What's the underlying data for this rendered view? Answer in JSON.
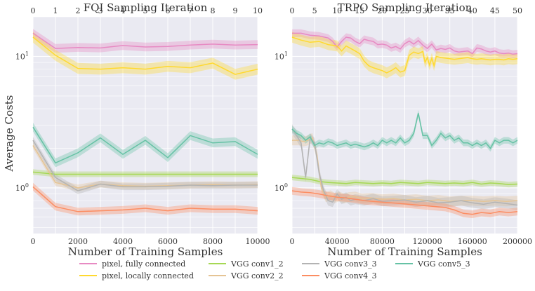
{
  "chart_data": [
    {
      "type": "line",
      "title": "FQI Sampling Iteration",
      "xlabel": "Number of Training Samples",
      "ylabel": "Average Costs",
      "yscale": "log",
      "xlim": [
        0,
        10000
      ],
      "ylim": [
        0.45,
        20
      ],
      "xticks": [
        0,
        2000,
        4000,
        6000,
        8000,
        10000
      ],
      "xtick_labels": [
        "0",
        "2000",
        "4000",
        "6000",
        "8000",
        "10000"
      ],
      "top_xlim": [
        0,
        10
      ],
      "top_xticks": [
        0,
        1,
        2,
        3,
        4,
        5,
        6,
        7,
        8,
        9,
        10
      ],
      "top_xtick_labels": [
        "0",
        "1",
        "2",
        "3",
        "4",
        "5",
        "6",
        "7",
        "8",
        "9",
        "10"
      ],
      "yticks": [
        1,
        10
      ],
      "ytick_labels": [
        "10^0",
        "10^1"
      ],
      "x": [
        0,
        1000,
        2000,
        3000,
        4000,
        5000,
        6000,
        7000,
        8000,
        9000,
        10000
      ],
      "series": [
        {
          "name": "pixel, fully connected",
          "color": "#e78ac3",
          "values": [
            15.0,
            11.5,
            11.7,
            11.6,
            12.1,
            11.8,
            11.9,
            12.2,
            12.4,
            12.2,
            12.3
          ],
          "band": 0.08
        },
        {
          "name": "pixel, locally connected",
          "color": "#ffd92f",
          "values": [
            14.0,
            10.2,
            8.1,
            8.0,
            8.2,
            8.0,
            8.4,
            8.2,
            8.9,
            7.3,
            8.0
          ],
          "band": 0.1
        },
        {
          "name": "VGG conv1_2",
          "color": "#a6d854",
          "values": [
            1.32,
            1.27,
            1.27,
            1.27,
            1.27,
            1.27,
            1.27,
            1.27,
            1.27,
            1.27,
            1.27
          ],
          "band": 0.05
        },
        {
          "name": "VGG conv2_2",
          "color": "#e5c494",
          "values": [
            2.1,
            1.1,
            1.0,
            1.07,
            1.04,
            1.03,
            1.04,
            1.05,
            1.06,
            1.05,
            1.06
          ],
          "band": 0.06
        },
        {
          "name": "VGG conv3_3",
          "color": "#b3b3b3",
          "values": [
            2.3,
            1.2,
            0.95,
            1.07,
            1.02,
            1.02,
            1.03,
            1.05,
            1.04,
            1.05,
            1.05
          ],
          "band": 0.06
        },
        {
          "name": "VGG conv4_3",
          "color": "#fc8d62",
          "values": [
            1.02,
            0.72,
            0.66,
            0.67,
            0.68,
            0.7,
            0.67,
            0.7,
            0.69,
            0.69,
            0.67
          ],
          "band": 0.07
        },
        {
          "name": "VGG conv5_3",
          "color": "#66c2a5",
          "values": [
            2.9,
            1.55,
            1.85,
            2.4,
            1.8,
            2.3,
            1.7,
            2.5,
            2.2,
            2.25,
            1.8
          ],
          "band": 0.08
        }
      ]
    },
    {
      "type": "line",
      "title": "TRPO Sampling Iteration",
      "xlabel": "Number of Training Samples",
      "ylabel": "",
      "yscale": "log",
      "xlim": [
        0,
        200000
      ],
      "ylim": [
        0.45,
        20
      ],
      "xticks": [
        0,
        40000,
        80000,
        120000,
        160000,
        200000
      ],
      "xtick_labels": [
        "0",
        "40000",
        "80000",
        "120000",
        "160000",
        "200000"
      ],
      "top_xlim": [
        0,
        50
      ],
      "top_xticks": [
        0,
        5,
        10,
        15,
        20,
        25,
        30,
        35,
        40,
        45,
        50
      ],
      "top_xtick_labels": [
        "0",
        "5",
        "10",
        "15",
        "20",
        "25",
        "30",
        "35",
        "40",
        "45",
        "50"
      ],
      "yticks": [
        1,
        10
      ],
      "ytick_labels": [
        "10^0",
        "10^1"
      ],
      "series": [
        {
          "name": "pixel, fully connected",
          "color": "#e78ac3",
          "band": 0.07,
          "x": [
            0,
            8000,
            16000,
            24000,
            32000,
            36000,
            40000,
            44000,
            48000,
            52000,
            56000,
            60000,
            64000,
            68000,
            72000,
            76000,
            80000,
            84000,
            88000,
            92000,
            96000,
            100000,
            104000,
            108000,
            112000,
            116000,
            120000,
            124000,
            128000,
            132000,
            136000,
            140000,
            144000,
            148000,
            152000,
            156000,
            160000,
            164000,
            168000,
            172000,
            176000,
            180000,
            184000,
            188000,
            192000,
            196000,
            200000
          ],
          "values": [
            15.0,
            15.0,
            14.5,
            14.3,
            13.8,
            13.0,
            11.8,
            13.0,
            14.0,
            13.8,
            13.0,
            12.5,
            13.5,
            13.2,
            13.0,
            12.3,
            12.4,
            12.2,
            11.6,
            11.9,
            11.4,
            12.5,
            13.1,
            12.4,
            13.2,
            12.2,
            11.5,
            12.4,
            11.2,
            11.5,
            11.3,
            11.6,
            11.0,
            10.8,
            10.9,
            11.0,
            10.5,
            11.6,
            11.4,
            11.0,
            10.8,
            11.0,
            10.6,
            10.5,
            10.6,
            10.4,
            10.5
          ]
        },
        {
          "name": "pixel, locally connected",
          "color": "#ffd92f",
          "band": 0.1,
          "x": [
            0,
            8000,
            16000,
            24000,
            32000,
            40000,
            44000,
            48000,
            52000,
            56000,
            60000,
            64000,
            68000,
            72000,
            76000,
            80000,
            84000,
            88000,
            92000,
            96000,
            100000,
            104000,
            108000,
            112000,
            116000,
            118000,
            120000,
            122000,
            124000,
            126000,
            128000,
            132000,
            136000,
            140000,
            144000,
            148000,
            152000,
            156000,
            160000,
            164000,
            168000,
            172000,
            176000,
            180000,
            184000,
            188000,
            192000,
            196000,
            200000
          ],
          "values": [
            14.0,
            13.3,
            12.8,
            13.0,
            12.3,
            12.0,
            11.0,
            12.0,
            11.5,
            11.0,
            10.5,
            9.2,
            8.5,
            8.2,
            8.0,
            7.8,
            7.5,
            7.8,
            8.2,
            7.6,
            7.8,
            10.2,
            10.8,
            10.5,
            10.9,
            9.0,
            9.8,
            8.6,
            9.7,
            8.5,
            10.0,
            9.8,
            9.7,
            9.6,
            9.5,
            9.6,
            9.7,
            9.8,
            9.6,
            9.5,
            9.6,
            9.5,
            9.4,
            9.5,
            9.5,
            9.4,
            9.6,
            9.5,
            9.6
          ]
        },
        {
          "name": "VGG conv1_2",
          "color": "#a6d854",
          "band": 0.05,
          "x": [
            0,
            8000,
            16000,
            24000,
            32000,
            40000,
            48000,
            56000,
            64000,
            72000,
            80000,
            88000,
            96000,
            104000,
            112000,
            120000,
            128000,
            136000,
            144000,
            152000,
            160000,
            168000,
            176000,
            184000,
            192000,
            200000
          ],
          "values": [
            1.2,
            1.18,
            1.16,
            1.12,
            1.1,
            1.09,
            1.08,
            1.1,
            1.09,
            1.08,
            1.09,
            1.08,
            1.1,
            1.09,
            1.08,
            1.1,
            1.09,
            1.08,
            1.09,
            1.08,
            1.1,
            1.07,
            1.09,
            1.08,
            1.06,
            1.07
          ]
        },
        {
          "name": "VGG conv2_2",
          "color": "#e5c494",
          "band": 0.09,
          "x": [
            0,
            6000,
            10000,
            14000,
            18000,
            22000,
            26000,
            30000,
            34000,
            38000,
            42000,
            46000,
            50000,
            56000,
            62000,
            70000,
            80000,
            90000,
            100000,
            110000,
            120000,
            130000,
            140000,
            150000,
            160000,
            170000,
            180000,
            190000,
            200000
          ],
          "values": [
            2.3,
            2.3,
            2.25,
            2.3,
            2.4,
            1.8,
            1.0,
            0.85,
            0.88,
            0.84,
            0.86,
            0.83,
            0.85,
            0.86,
            0.83,
            0.84,
            0.82,
            0.83,
            0.81,
            0.82,
            0.8,
            0.81,
            0.79,
            0.8,
            0.8,
            0.79,
            0.8,
            0.79,
            0.8
          ]
        },
        {
          "name": "VGG conv3_3",
          "color": "#b3b3b3",
          "band": 0.09,
          "x": [
            0,
            4000,
            8000,
            12000,
            16000,
            20000,
            24000,
            28000,
            32000,
            36000,
            40000,
            44000,
            48000,
            52000,
            56000,
            64000,
            72000,
            80000,
            90000,
            100000,
            110000,
            120000,
            130000,
            140000,
            150000,
            160000,
            170000,
            180000,
            190000,
            200000
          ],
          "values": [
            2.8,
            2.5,
            2.2,
            1.2,
            2.4,
            2.2,
            1.3,
            0.95,
            0.8,
            0.78,
            0.9,
            0.82,
            0.85,
            0.8,
            0.82,
            0.8,
            0.83,
            0.79,
            0.8,
            0.81,
            0.78,
            0.8,
            0.77,
            0.78,
            0.8,
            0.77,
            0.75,
            0.78,
            0.76,
            0.74
          ]
        },
        {
          "name": "VGG conv4_3",
          "color": "#fc8d62",
          "band": 0.07,
          "x": [
            0,
            8000,
            16000,
            24000,
            32000,
            40000,
            48000,
            56000,
            64000,
            72000,
            80000,
            88000,
            96000,
            104000,
            112000,
            120000,
            128000,
            136000,
            144000,
            152000,
            160000,
            168000,
            176000,
            184000,
            192000,
            200000
          ],
          "values": [
            0.95,
            0.93,
            0.92,
            0.9,
            0.87,
            0.85,
            0.84,
            0.82,
            0.8,
            0.79,
            0.78,
            0.77,
            0.76,
            0.75,
            0.74,
            0.73,
            0.72,
            0.71,
            0.68,
            0.64,
            0.63,
            0.65,
            0.64,
            0.66,
            0.65,
            0.66
          ]
        },
        {
          "name": "VGG conv5_3",
          "color": "#66c2a5",
          "band": 0.06,
          "x": [
            0,
            4000,
            8000,
            12000,
            16000,
            20000,
            24000,
            28000,
            32000,
            36000,
            40000,
            44000,
            48000,
            52000,
            56000,
            60000,
            64000,
            68000,
            72000,
            76000,
            80000,
            84000,
            88000,
            92000,
            96000,
            100000,
            104000,
            108000,
            112000,
            116000,
            120000,
            124000,
            128000,
            132000,
            136000,
            140000,
            144000,
            148000,
            152000,
            156000,
            160000,
            164000,
            168000,
            172000,
            176000,
            180000,
            184000,
            188000,
            192000,
            196000,
            200000
          ],
          "values": [
            2.8,
            2.6,
            2.5,
            2.3,
            2.45,
            2.1,
            2.2,
            2.15,
            2.25,
            2.2,
            2.1,
            2.15,
            2.2,
            2.1,
            2.15,
            2.1,
            2.05,
            2.1,
            2.2,
            2.1,
            2.3,
            2.2,
            2.3,
            2.2,
            2.4,
            2.2,
            2.3,
            2.6,
            3.7,
            2.5,
            2.5,
            2.1,
            2.3,
            2.6,
            2.4,
            2.5,
            2.3,
            2.4,
            2.2,
            2.2,
            2.1,
            2.2,
            2.1,
            2.2,
            2.0,
            2.3,
            2.2,
            2.3,
            2.3,
            2.2,
            2.3
          ]
        }
      ]
    }
  ],
  "legend": {
    "placement": "bottom",
    "entries": [
      {
        "name": "pixel, fully connected",
        "color": "#e78ac3"
      },
      {
        "name": "pixel, locally connected",
        "color": "#ffd92f"
      },
      {
        "name": "VGG conv1_2",
        "color": "#a6d854"
      },
      {
        "name": "VGG conv2_2",
        "color": "#e5c494"
      },
      {
        "name": "VGG conv3_3",
        "color": "#b3b3b3"
      },
      {
        "name": "VGG conv4_3",
        "color": "#fc8d62"
      },
      {
        "name": "VGG conv5_3",
        "color": "#66c2a5"
      }
    ]
  },
  "colors": {
    "axes_bg": "#eaeaf2",
    "grid": "#ffffff",
    "text": "#333333"
  }
}
